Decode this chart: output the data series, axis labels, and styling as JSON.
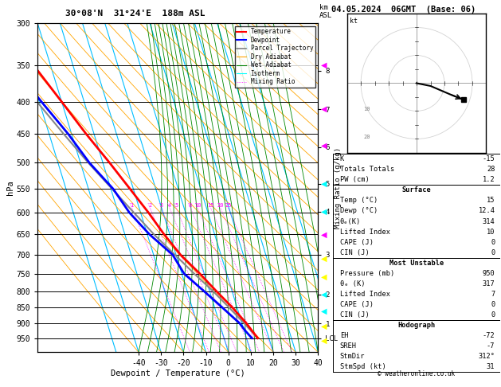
{
  "title_left": "30°08'N  31°24'E  188m ASL",
  "title_right": "04.05.2024  06GMT  (Base: 06)",
  "xlabel": "Dewpoint / Temperature (°C)",
  "ylabel_left": "hPa",
  "pressure_labels": [
    300,
    350,
    400,
    450,
    500,
    550,
    600,
    650,
    700,
    750,
    800,
    850,
    900,
    950
  ],
  "pressure_hlines": [
    300,
    350,
    400,
    450,
    500,
    550,
    600,
    650,
    700,
    750,
    800,
    850,
    900,
    950,
    1000
  ],
  "km_labels": [
    "8",
    "7",
    "6",
    "5",
    "4",
    "3",
    "2",
    "1",
    "LCL"
  ],
  "km_pressures": [
    357,
    411,
    472,
    540,
    598,
    700,
    810,
    900,
    950
  ],
  "tmin": -40,
  "tmax": 40,
  "pmin": 300,
  "pmax": 1000,
  "skew": 45,
  "isotherm_color": "#00bfff",
  "isotherm_temps": [
    -50,
    -40,
    -30,
    -20,
    -10,
    0,
    10,
    20,
    30,
    40,
    50
  ],
  "dry_adiabat_color": "#ffa500",
  "wet_adiabat_color": "#008800",
  "mixing_ratio_color": "#ff00ff",
  "temp_profile_color": "#ff0000",
  "dewp_profile_color": "#0000ff",
  "parcel_color": "#888888",
  "temp_profile_pressure": [
    950,
    925,
    900,
    850,
    800,
    750,
    700,
    650,
    600,
    550,
    500,
    450,
    400,
    350,
    300
  ],
  "temp_profile_temp": [
    15.0,
    13.5,
    12.0,
    8.0,
    3.0,
    -2.0,
    -8.0,
    -12.5,
    -16.5,
    -21.5,
    -27.0,
    -33.5,
    -40.0,
    -47.5,
    -56.0
  ],
  "dewp_profile_temp": [
    12.4,
    10.5,
    9.0,
    3.5,
    -2.5,
    -9.0,
    -11.5,
    -19.0,
    -25.0,
    -29.0,
    -36.0,
    -41.5,
    -49.0,
    -57.0,
    -65.0
  ],
  "parcel_profile_temp": [
    15.0,
    13.0,
    11.0,
    6.5,
    1.5,
    -4.5,
    -10.5,
    -17.0,
    -23.0,
    -29.5,
    -36.5,
    -43.5,
    -51.0,
    -59.0,
    -67.5
  ],
  "mixing_ratio_values": [
    1,
    2,
    3,
    4,
    5,
    8,
    10,
    15,
    20,
    25
  ],
  "mixing_ratio_labels": [
    "1",
    "2",
    "3",
    "4",
    "5",
    "8",
    "10",
    "15",
    "20",
    "25"
  ],
  "k_index": -15,
  "totals_totals": 28,
  "pw_cm": 1.2,
  "surface_temp": 15,
  "surface_dewp": 12.4,
  "theta_e_surface": 314,
  "lifted_index_surface": 10,
  "cape_surface": 0,
  "cin_surface": 0,
  "mu_pressure": 950,
  "theta_e_mu": 317,
  "lifted_index_mu": 7,
  "cape_mu": 0,
  "cin_mu": 0,
  "eh": -72,
  "sreh": -7,
  "stm_dir": "312°",
  "stm_spd": 31,
  "copyright": "© weatheronline.co.uk",
  "right_markers": [
    {
      "pressure": 350,
      "color": "#ff00ff",
      "char": "▶"
    },
    {
      "pressure": 410,
      "color": "#ff00ff",
      "char": "▶"
    },
    {
      "pressure": 470,
      "color": "#ff00ff",
      "char": "▶"
    },
    {
      "pressure": 540,
      "color": "#00ffff",
      "char": "▶"
    },
    {
      "pressure": 600,
      "color": "#00ffff",
      "char": "▶"
    },
    {
      "pressure": 650,
      "color": "#00ffff",
      "char": "▶"
    },
    {
      "pressure": 710,
      "color": "#ffff00",
      "char": "▶"
    },
    {
      "pressure": 760,
      "color": "#00ff00",
      "char": "▶"
    },
    {
      "pressure": 810,
      "color": "#00ffff",
      "char": "▶"
    },
    {
      "pressure": 860,
      "color": "#00ffff",
      "char": "▶"
    },
    {
      "pressure": 910,
      "color": "#ffff00",
      "char": "▶"
    },
    {
      "pressure": 960,
      "color": "#ffff00",
      "char": "▶"
    }
  ],
  "hodo_u": [
    0,
    5,
    12,
    17
  ],
  "hodo_v": [
    0,
    -1,
    -4,
    -6
  ]
}
